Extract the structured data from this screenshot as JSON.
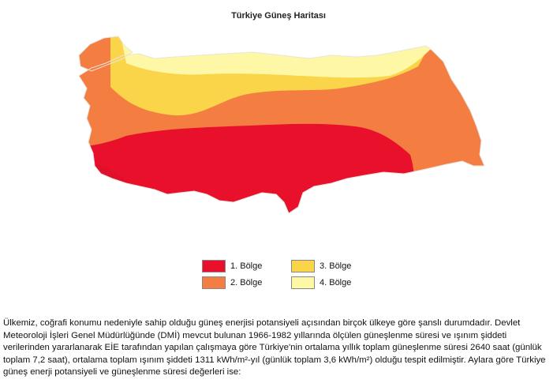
{
  "title": "Türkiye Güneş Haritası",
  "legend": {
    "items": [
      {
        "label": "1. Bölge",
        "color": "#e8102a"
      },
      {
        "label": "2. Bölge",
        "color": "#f47d42"
      },
      {
        "label": "3. Bölge",
        "color": "#fad54a"
      },
      {
        "label": "4. Bölge",
        "color": "#fdf7a6"
      }
    ]
  },
  "description": "Ülkemiz, coğrafi konumu nedeniyle sahip olduğu güneş enerjisi potansiyeli açısından birçok ülkeye göre şanslı durumdadır. Devlet Meteoroloji İşleri Genel Müdürlüğünde (DMİ) mevcut bulunan 1966-1982 yıllarında ölçülen güneşlenme süresi ve ışınım şiddeti verilerinden yararlanarak EİE tarafından yapılan çalışmaya göre Türkiye'nin ortalama yıllık toplam güneşlenme süresi 2640 saat (günlük toplam 7,2 saat), ortalama toplam ışınım şiddeti 1311 kWh/m²-yıl (günlük toplam 3,6 kWh/m²) olduğu tespit edilmiştir. Aylara göre Türkiye güneş enerji potansiyeli ve güneşlenme süresi değerleri ise:"
}
